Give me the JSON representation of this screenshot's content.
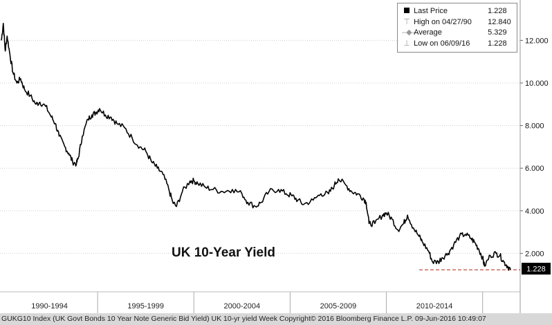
{
  "legend": {
    "rows": [
      {
        "label": "Last Price",
        "value": "1.228"
      },
      {
        "label": "High on 04/27/90",
        "value": "12.840"
      },
      {
        "label": "Average",
        "value": "5.329"
      },
      {
        "label": "Low on 06/09/16",
        "value": "1.228"
      }
    ]
  },
  "footer": {
    "text": "GUKG10 Index (UK Govt Bonds 10 Year Note Generic Bid Yield) UK 10-yr yield  Week Copyright© 2016 Bloomberg Finance L.P. 09-Jun-2016 10:49:07"
  },
  "chart_data": {
    "type": "line",
    "title": "UK 10-Year Yield",
    "xlabel": "",
    "ylabel": "",
    "ylim": [
      0,
      13.8
    ],
    "yticks": [
      2,
      4,
      6,
      8,
      10,
      12
    ],
    "ytick_labels": [
      "2.000",
      "4.000",
      "6.000",
      "8.000",
      "10.000",
      "12.000"
    ],
    "x_period_labels": [
      "1990-1994",
      "1995-1999",
      "2000-2004",
      "2005-2009",
      "2010-2014"
    ],
    "x_range": [
      1990.0,
      2016.45
    ],
    "grid": true,
    "last_value_label": "1.228",
    "reference_line": {
      "value": 1.228,
      "style": "dashed",
      "color": "#c0392b"
    },
    "series": [
      {
        "x": [
          1990.0,
          1990.1,
          1990.2,
          1990.3,
          1990.45,
          1990.6,
          1990.8,
          1991.0,
          1991.2,
          1991.5,
          1991.8,
          1992.0,
          1992.3,
          1992.6,
          1992.8,
          1993.0,
          1993.3,
          1993.5,
          1993.7,
          1993.9,
          1994.0,
          1994.2,
          1994.5,
          1994.7,
          1994.9,
          1995.1,
          1995.4,
          1995.7,
          1996.0,
          1996.4,
          1996.8,
          1997.2,
          1997.5,
          1997.8,
          1998.1,
          1998.4,
          1998.7,
          1998.9,
          1999.1,
          1999.4,
          1999.8,
          2000.0,
          2000.2,
          2000.6,
          2001.0,
          2001.5,
          2002.0,
          2002.5,
          2002.8,
          2003.2,
          2003.5,
          2003.9,
          2004.4,
          2004.8,
          2005.1,
          2005.4,
          2005.7,
          2006.2,
          2006.6,
          2007.0,
          2007.3,
          2007.5,
          2007.9,
          2008.2,
          2008.5,
          2008.8,
          2008.95,
          2009.1,
          2009.4,
          2009.8,
          2010.0,
          2010.3,
          2010.6,
          2010.9,
          2011.1,
          2011.4,
          2011.7,
          2011.9,
          2012.2,
          2012.4,
          2012.7,
          2012.9,
          2013.2,
          2013.5,
          2013.8,
          2014.1,
          2014.4,
          2014.6,
          2014.8,
          2015.0,
          2015.1,
          2015.4,
          2015.7,
          2015.9,
          2016.1,
          2016.3,
          2016.45
        ],
        "y": [
          12.0,
          12.8,
          11.5,
          12.2,
          11.3,
          10.5,
          10.0,
          10.2,
          9.7,
          9.4,
          9.0,
          9.1,
          8.9,
          8.4,
          8.1,
          7.5,
          7.0,
          6.7,
          6.3,
          6.2,
          6.5,
          7.5,
          8.3,
          8.5,
          8.6,
          8.8,
          8.5,
          8.4,
          8.1,
          7.9,
          7.4,
          7.0,
          6.8,
          6.3,
          6.0,
          5.7,
          5.0,
          4.4,
          4.2,
          4.9,
          5.4,
          5.4,
          5.3,
          5.1,
          5.0,
          4.9,
          5.0,
          4.8,
          4.4,
          4.2,
          4.4,
          4.9,
          5.0,
          4.8,
          4.7,
          4.5,
          4.3,
          4.5,
          4.8,
          4.8,
          5.2,
          5.5,
          5.2,
          4.9,
          4.8,
          4.6,
          4.4,
          3.4,
          3.4,
          3.8,
          3.9,
          3.6,
          3.1,
          3.4,
          3.8,
          3.2,
          2.8,
          2.5,
          2.1,
          1.6,
          1.6,
          1.8,
          2.0,
          2.4,
          2.8,
          2.9,
          2.7,
          2.5,
          2.2,
          1.8,
          1.4,
          1.9,
          2.0,
          1.9,
          1.6,
          1.4,
          1.23
        ]
      }
    ]
  }
}
